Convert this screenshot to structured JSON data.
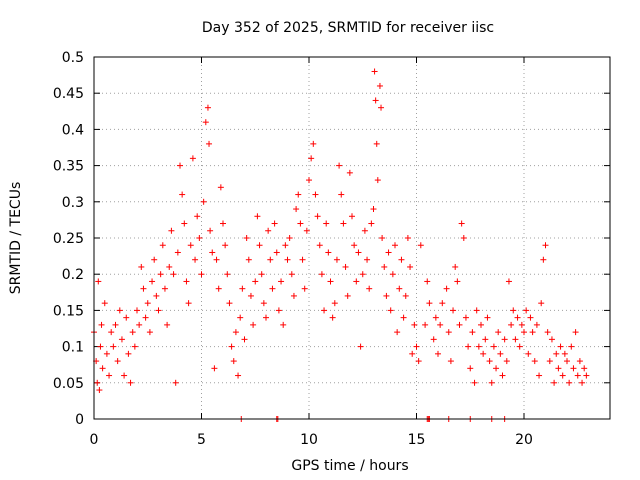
{
  "chart_data": {
    "type": "scatter",
    "title": "Day 352 of 2025, SRMTID for receiver iisc",
    "xlabel": "GPS time / hours",
    "ylabel": "SRMTID / TECUs",
    "xlim": [
      0,
      24
    ],
    "ylim": [
      0,
      0.5
    ],
    "x_ticks": [
      "0",
      "5",
      "10",
      "15",
      "20"
    ],
    "y_ticks": [
      "0",
      "0.05",
      "0.1",
      "0.15",
      "0.2",
      "0.25",
      "0.3",
      "0.35",
      "0.4",
      "0.45",
      "0.5"
    ],
    "grid": true,
    "marker": "plus",
    "series": [
      {
        "color": "#ff0000",
        "points": [
          [
            0.0,
            0.12
          ],
          [
            0.1,
            0.08
          ],
          [
            0.15,
            0.05
          ],
          [
            0.2,
            0.19
          ],
          [
            0.25,
            0.04
          ],
          [
            0.3,
            0.1
          ],
          [
            0.35,
            0.13
          ],
          [
            0.4,
            0.07
          ],
          [
            0.5,
            0.16
          ],
          [
            0.6,
            0.09
          ],
          [
            0.7,
            0.06
          ],
          [
            0.8,
            0.12
          ],
          [
            0.9,
            0.1
          ],
          [
            1.0,
            0.13
          ],
          [
            1.1,
            0.08
          ],
          [
            1.2,
            0.15
          ],
          [
            1.3,
            0.11
          ],
          [
            1.4,
            0.06
          ],
          [
            1.5,
            0.14
          ],
          [
            1.6,
            0.09
          ],
          [
            1.7,
            0.05
          ],
          [
            1.8,
            0.12
          ],
          [
            1.9,
            0.1
          ],
          [
            2.0,
            0.15
          ],
          [
            2.1,
            0.13
          ],
          [
            2.2,
            0.21
          ],
          [
            2.3,
            0.18
          ],
          [
            2.4,
            0.14
          ],
          [
            2.5,
            0.16
          ],
          [
            2.6,
            0.12
          ],
          [
            2.7,
            0.19
          ],
          [
            2.8,
            0.22
          ],
          [
            2.9,
            0.17
          ],
          [
            3.0,
            0.15
          ],
          [
            3.1,
            0.2
          ],
          [
            3.2,
            0.24
          ],
          [
            3.3,
            0.18
          ],
          [
            3.4,
            0.13
          ],
          [
            3.5,
            0.21
          ],
          [
            3.6,
            0.26
          ],
          [
            3.7,
            0.2
          ],
          [
            3.8,
            0.05
          ],
          [
            3.9,
            0.23
          ],
          [
            4.0,
            0.35
          ],
          [
            4.1,
            0.31
          ],
          [
            4.2,
            0.27
          ],
          [
            4.3,
            0.19
          ],
          [
            4.4,
            0.16
          ],
          [
            4.5,
            0.24
          ],
          [
            4.6,
            0.36
          ],
          [
            4.7,
            0.22
          ],
          [
            4.8,
            0.28
          ],
          [
            4.9,
            0.25
          ],
          [
            5.0,
            0.2
          ],
          [
            5.1,
            0.3
          ],
          [
            5.2,
            0.41
          ],
          [
            5.3,
            0.43
          ],
          [
            5.35,
            0.38
          ],
          [
            5.4,
            0.26
          ],
          [
            5.5,
            0.23
          ],
          [
            5.6,
            0.07
          ],
          [
            5.7,
            0.22
          ],
          [
            5.8,
            0.18
          ],
          [
            5.9,
            0.32
          ],
          [
            6.0,
            0.27
          ],
          [
            6.1,
            0.24
          ],
          [
            6.2,
            0.2
          ],
          [
            6.3,
            0.16
          ],
          [
            6.4,
            0.1
          ],
          [
            6.5,
            0.08
          ],
          [
            6.6,
            0.12
          ],
          [
            6.7,
            0.06
          ],
          [
            6.8,
            0.14
          ],
          [
            6.9,
            0.18
          ],
          [
            7.0,
            0.11
          ],
          [
            7.1,
            0.25
          ],
          [
            7.2,
            0.22
          ],
          [
            7.3,
            0.17
          ],
          [
            7.4,
            0.13
          ],
          [
            7.5,
            0.19
          ],
          [
            7.6,
            0.28
          ],
          [
            7.7,
            0.24
          ],
          [
            7.8,
            0.2
          ],
          [
            7.9,
            0.16
          ],
          [
            8.0,
            0.14
          ],
          [
            8.1,
            0.26
          ],
          [
            8.2,
            0.22
          ],
          [
            8.3,
            0.18
          ],
          [
            8.4,
            0.27
          ],
          [
            8.5,
            0.23
          ],
          [
            8.6,
            0.15
          ],
          [
            8.7,
            0.19
          ],
          [
            8.8,
            0.13
          ],
          [
            8.9,
            0.24
          ],
          [
            9.0,
            0.22
          ],
          [
            9.1,
            0.25
          ],
          [
            9.2,
            0.2
          ],
          [
            9.3,
            0.17
          ],
          [
            9.4,
            0.29
          ],
          [
            9.5,
            0.31
          ],
          [
            9.6,
            0.27
          ],
          [
            9.7,
            0.22
          ],
          [
            9.8,
            0.18
          ],
          [
            9.9,
            0.26
          ],
          [
            10.0,
            0.33
          ],
          [
            10.1,
            0.36
          ],
          [
            10.2,
            0.38
          ],
          [
            10.3,
            0.31
          ],
          [
            10.4,
            0.28
          ],
          [
            10.5,
            0.24
          ],
          [
            10.6,
            0.2
          ],
          [
            10.7,
            0.15
          ],
          [
            10.8,
            0.27
          ],
          [
            10.9,
            0.23
          ],
          [
            11.0,
            0.19
          ],
          [
            11.1,
            0.14
          ],
          [
            11.2,
            0.16
          ],
          [
            11.3,
            0.22
          ],
          [
            11.4,
            0.35
          ],
          [
            11.5,
            0.31
          ],
          [
            11.6,
            0.27
          ],
          [
            11.7,
            0.21
          ],
          [
            11.8,
            0.17
          ],
          [
            11.9,
            0.34
          ],
          [
            12.0,
            0.28
          ],
          [
            12.1,
            0.24
          ],
          [
            12.2,
            0.19
          ],
          [
            12.3,
            0.23
          ],
          [
            12.4,
            0.1
          ],
          [
            12.5,
            0.2
          ],
          [
            12.6,
            0.26
          ],
          [
            12.7,
            0.22
          ],
          [
            12.8,
            0.18
          ],
          [
            12.9,
            0.27
          ],
          [
            13.0,
            0.29
          ],
          [
            13.05,
            0.48
          ],
          [
            13.1,
            0.44
          ],
          [
            13.15,
            0.38
          ],
          [
            13.2,
            0.33
          ],
          [
            13.3,
            0.46
          ],
          [
            13.35,
            0.43
          ],
          [
            13.4,
            0.25
          ],
          [
            13.5,
            0.21
          ],
          [
            13.6,
            0.17
          ],
          [
            13.7,
            0.23
          ],
          [
            13.8,
            0.15
          ],
          [
            13.9,
            0.2
          ],
          [
            14.0,
            0.24
          ],
          [
            14.1,
            0.12
          ],
          [
            14.2,
            0.18
          ],
          [
            14.3,
            0.22
          ],
          [
            14.4,
            0.14
          ],
          [
            14.5,
            0.17
          ],
          [
            14.6,
            0.25
          ],
          [
            14.7,
            0.21
          ],
          [
            14.8,
            0.09
          ],
          [
            14.9,
            0.13
          ],
          [
            15.0,
            0.1
          ],
          [
            15.1,
            0.08
          ],
          [
            15.2,
            0.24
          ],
          [
            15.4,
            0.13
          ],
          [
            15.5,
            0.19
          ],
          [
            15.6,
            0.16
          ],
          [
            15.8,
            0.11
          ],
          [
            15.9,
            0.14
          ],
          [
            16.0,
            0.09
          ],
          [
            16.1,
            0.13
          ],
          [
            16.2,
            0.16
          ],
          [
            16.4,
            0.18
          ],
          [
            16.5,
            0.12
          ],
          [
            16.6,
            0.08
          ],
          [
            16.7,
            0.15
          ],
          [
            16.8,
            0.21
          ],
          [
            16.9,
            0.19
          ],
          [
            17.0,
            0.13
          ],
          [
            17.1,
            0.27
          ],
          [
            17.2,
            0.25
          ],
          [
            17.3,
            0.14
          ],
          [
            17.4,
            0.1
          ],
          [
            17.5,
            0.07
          ],
          [
            17.6,
            0.12
          ],
          [
            17.7,
            0.05
          ],
          [
            17.8,
            0.15
          ],
          [
            17.9,
            0.1
          ],
          [
            18.0,
            0.13
          ],
          [
            18.1,
            0.09
          ],
          [
            18.2,
            0.11
          ],
          [
            18.3,
            0.14
          ],
          [
            18.4,
            0.08
          ],
          [
            18.5,
            0.05
          ],
          [
            18.6,
            0.1
          ],
          [
            18.7,
            0.07
          ],
          [
            18.8,
            0.12
          ],
          [
            18.9,
            0.09
          ],
          [
            19.0,
            0.06
          ],
          [
            19.1,
            0.11
          ],
          [
            19.2,
            0.08
          ],
          [
            19.3,
            0.19
          ],
          [
            19.4,
            0.13
          ],
          [
            19.5,
            0.15
          ],
          [
            19.6,
            0.11
          ],
          [
            19.7,
            0.14
          ],
          [
            19.8,
            0.1
          ],
          [
            19.9,
            0.13
          ],
          [
            20.0,
            0.12
          ],
          [
            20.1,
            0.15
          ],
          [
            20.2,
            0.09
          ],
          [
            20.3,
            0.14
          ],
          [
            20.4,
            0.12
          ],
          [
            20.5,
            0.08
          ],
          [
            20.6,
            0.13
          ],
          [
            20.7,
            0.06
          ],
          [
            20.8,
            0.16
          ],
          [
            20.9,
            0.22
          ],
          [
            21.0,
            0.24
          ],
          [
            21.1,
            0.12
          ],
          [
            21.2,
            0.08
          ],
          [
            21.3,
            0.11
          ],
          [
            21.4,
            0.05
          ],
          [
            21.5,
            0.09
          ],
          [
            21.6,
            0.07
          ],
          [
            21.7,
            0.1
          ],
          [
            21.8,
            0.06
          ],
          [
            21.9,
            0.09
          ],
          [
            22.0,
            0.08
          ],
          [
            22.1,
            0.05
          ],
          [
            22.2,
            0.1
          ],
          [
            22.3,
            0.07
          ],
          [
            22.4,
            0.12
          ],
          [
            22.5,
            0.06
          ],
          [
            22.6,
            0.08
          ],
          [
            22.7,
            0.05
          ],
          [
            22.8,
            0.07
          ],
          [
            22.9,
            0.06
          ],
          [
            6.85,
            0.0
          ],
          [
            8.5,
            0.0
          ],
          [
            8.55,
            0.0
          ],
          [
            15.5,
            0.0
          ],
          [
            15.55,
            0.0
          ],
          [
            15.6,
            0.0
          ],
          [
            16.5,
            0.0
          ],
          [
            17.5,
            0.0
          ],
          [
            18.5,
            0.0
          ],
          [
            19.1,
            0.0
          ]
        ]
      }
    ]
  }
}
